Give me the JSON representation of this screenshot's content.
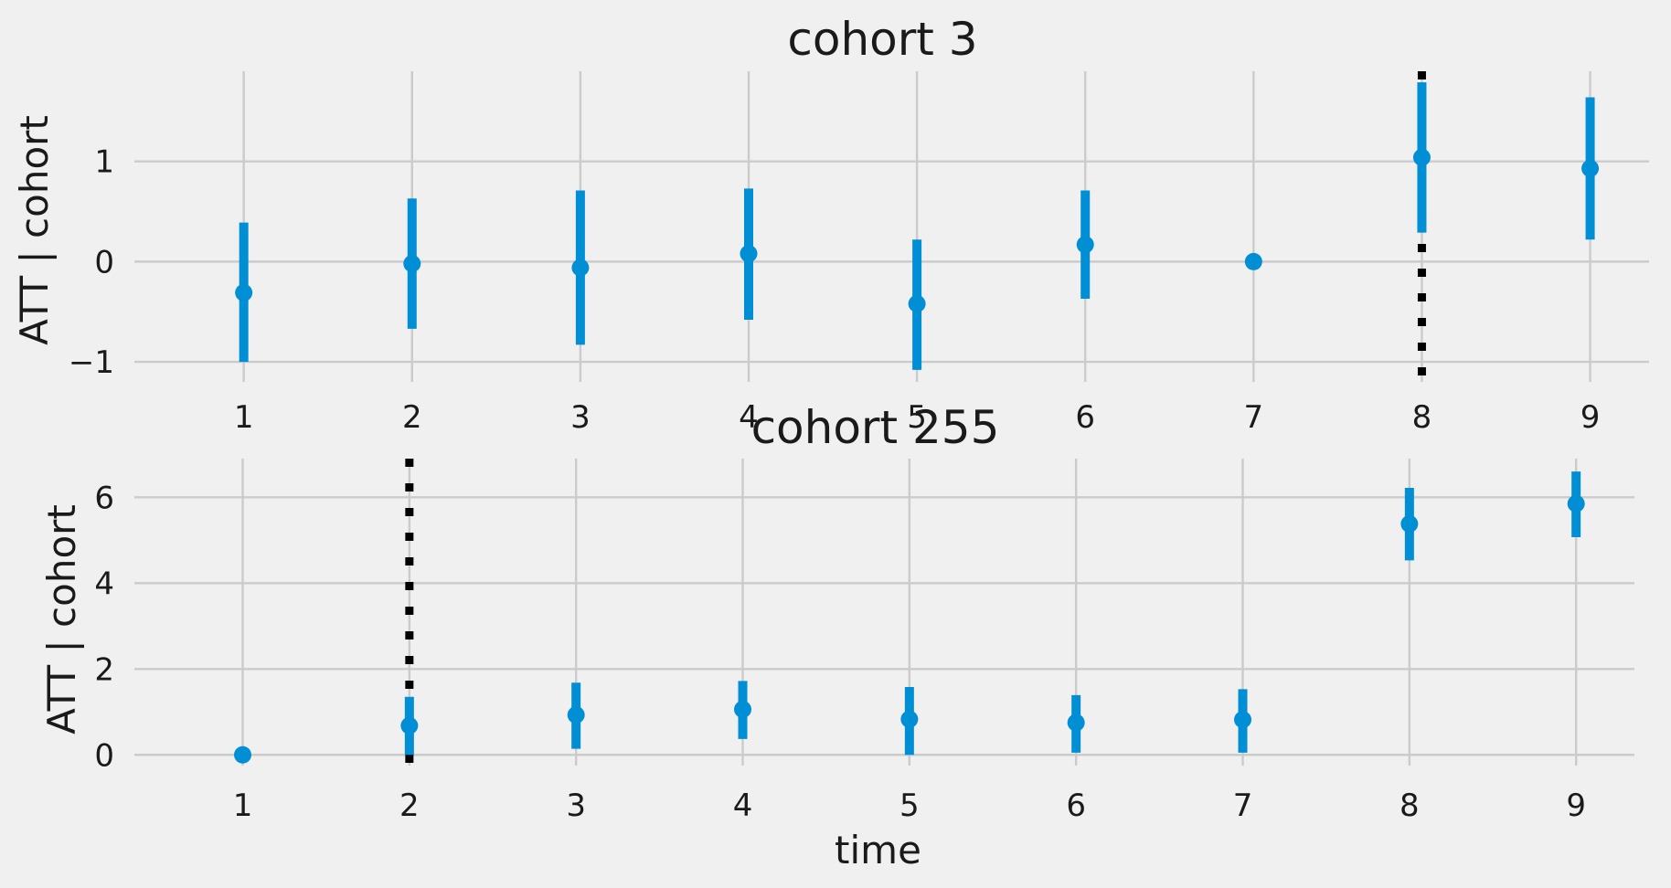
{
  "chart_data": [
    {
      "type": "scatter",
      "title": "cohort 3",
      "ylabel": "ATT | cohort",
      "xlabel": "",
      "x": [
        1,
        2,
        3,
        4,
        5,
        6,
        7,
        8,
        9
      ],
      "xticks": [
        1,
        2,
        3,
        4,
        5,
        6,
        7,
        8,
        9
      ],
      "xlim": [
        0.35,
        9.35
      ],
      "ylim": [
        -1.2,
        1.9
      ],
      "yticks": [
        -1,
        0,
        1
      ],
      "ytick_labels": [
        "−1",
        "0",
        "1"
      ],
      "series": [
        {
          "values": [
            -0.31,
            -0.02,
            -0.06,
            0.08,
            -0.42,
            0.17,
            0.0,
            1.04,
            0.93
          ],
          "lower": [
            -1.0,
            -0.67,
            -0.83,
            -0.58,
            -1.08,
            -0.37,
            0.0,
            0.29,
            0.22
          ],
          "upper": [
            0.39,
            0.63,
            0.71,
            0.73,
            0.22,
            0.71,
            0.0,
            1.79,
            1.64
          ],
          "color": "#008fd5"
        }
      ],
      "vline_x": 8,
      "vline_color": "#000000",
      "grid": true
    },
    {
      "type": "scatter",
      "title": "cohort 255",
      "ylabel": "ATT | cohort",
      "xlabel": "time",
      "x": [
        1,
        2,
        3,
        4,
        5,
        6,
        7,
        8,
        9
      ],
      "xticks": [
        1,
        2,
        3,
        4,
        5,
        6,
        7,
        8,
        9
      ],
      "xlim": [
        0.35,
        9.35
      ],
      "ylim": [
        -0.25,
        6.9
      ],
      "yticks": [
        0,
        2,
        4,
        6
      ],
      "ytick_labels": [
        "0",
        "2",
        "4",
        "6"
      ],
      "series": [
        {
          "values": [
            0.0,
            0.68,
            0.93,
            1.06,
            0.83,
            0.75,
            0.82,
            5.38,
            5.85
          ],
          "lower": [
            0.0,
            0.0,
            0.14,
            0.37,
            0.0,
            0.05,
            0.05,
            4.53,
            5.07
          ],
          "upper": [
            0.0,
            1.35,
            1.68,
            1.72,
            1.58,
            1.39,
            1.53,
            6.22,
            6.6
          ],
          "color": "#008fd5"
        }
      ],
      "vline_x": 2,
      "vline_color": "#000000",
      "grid": true
    }
  ]
}
